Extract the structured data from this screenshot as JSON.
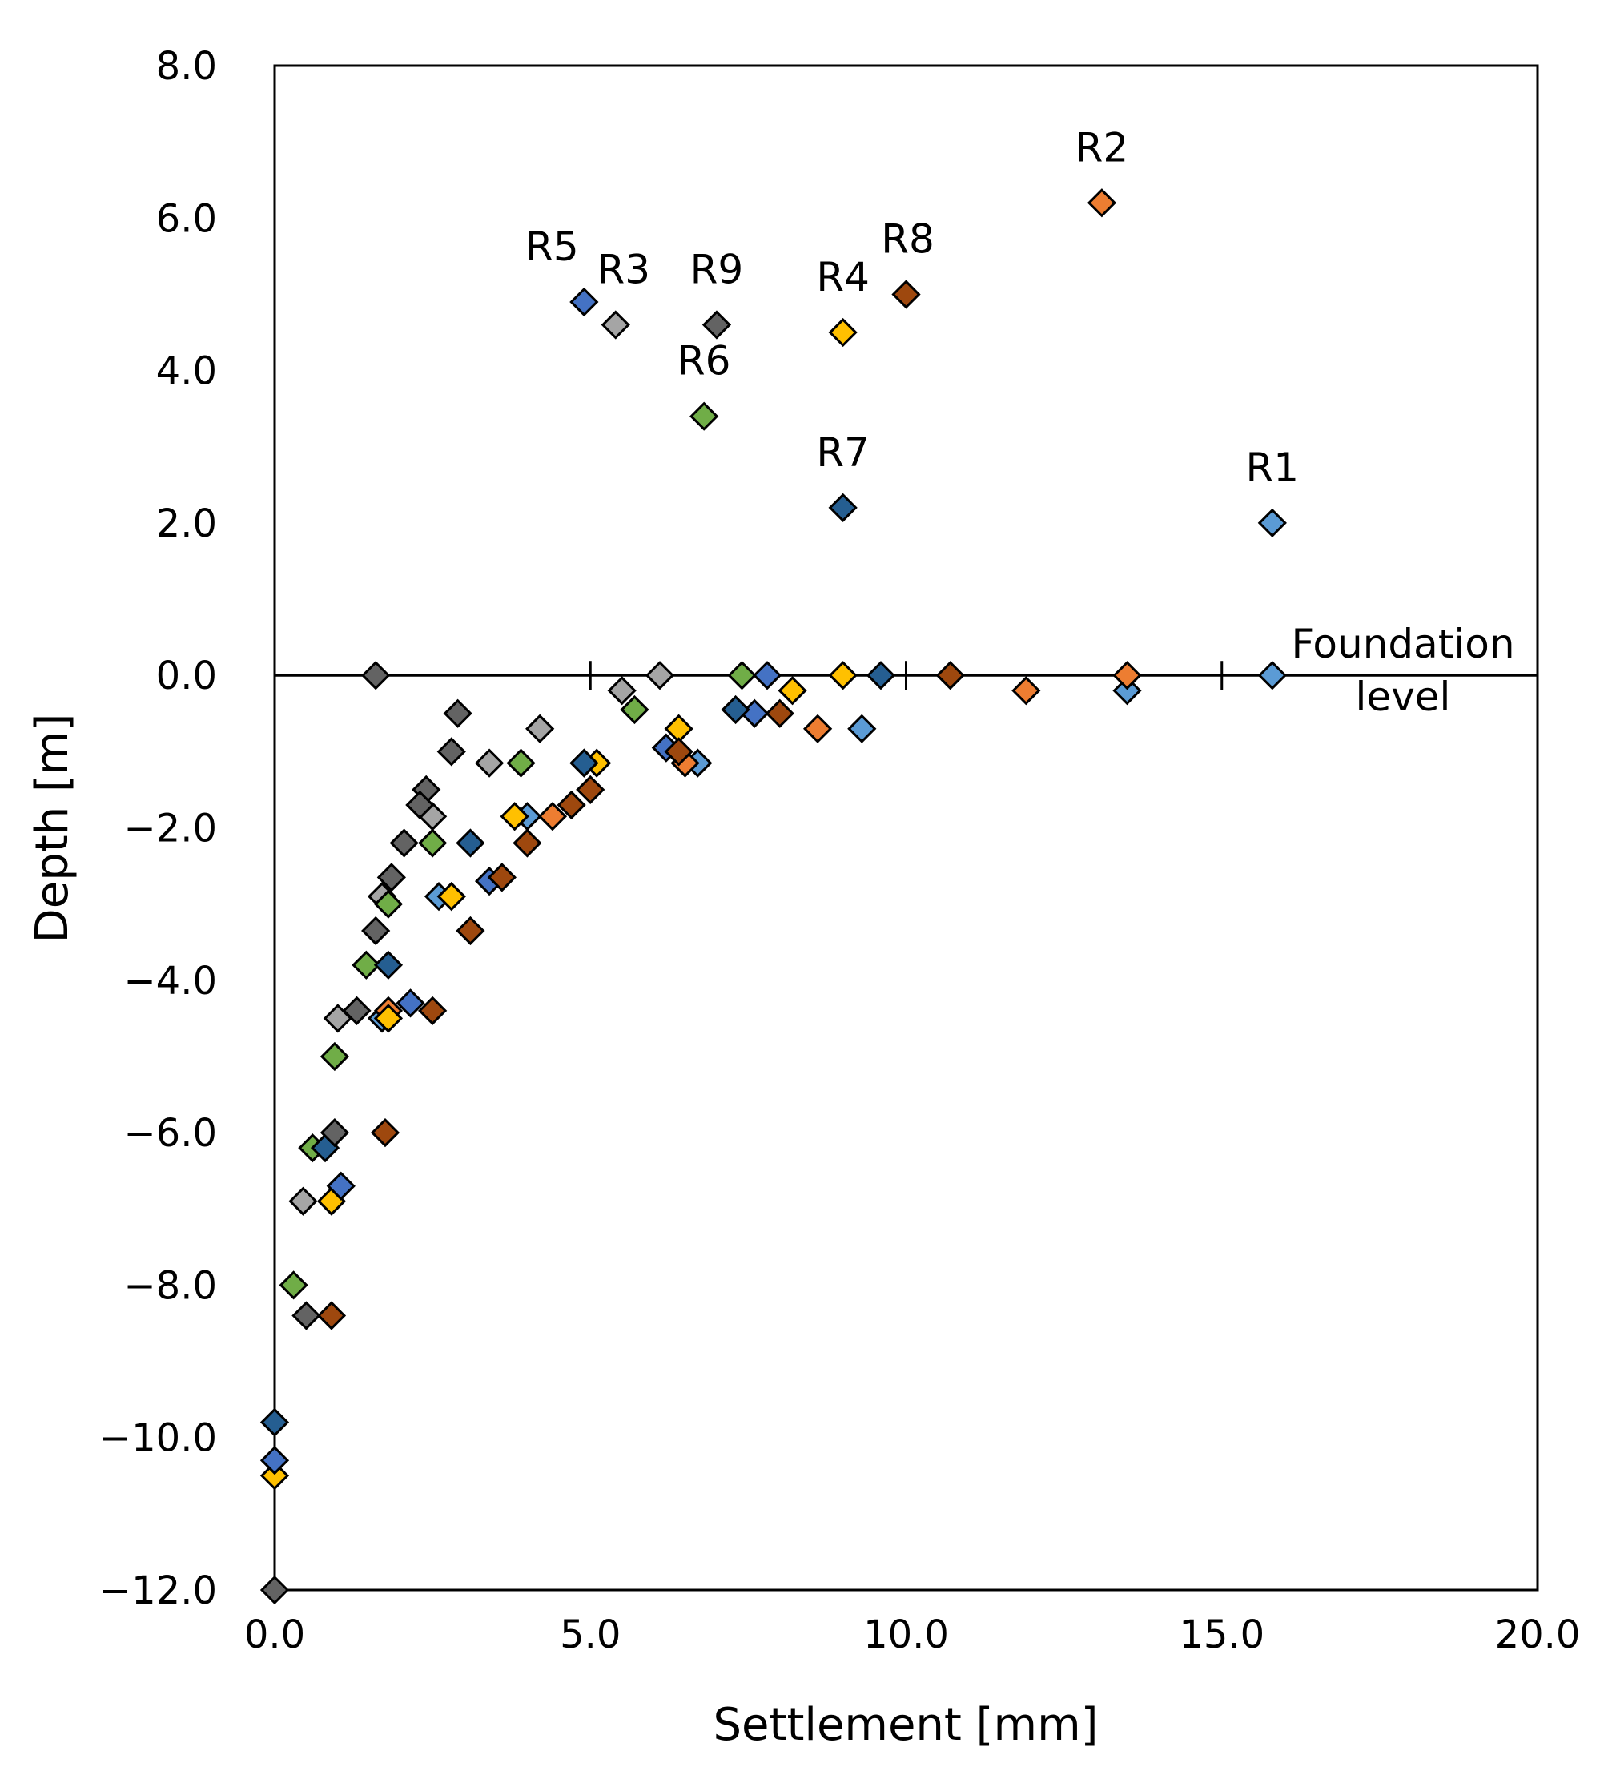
{
  "chart_data": {
    "type": "scatter",
    "xlabel": "Settlement [mm]",
    "ylabel": "Depth [m]",
    "xlim": [
      0.0,
      20.0
    ],
    "ylim": [
      -12.0,
      8.0
    ],
    "x_ticks": [
      0.0,
      5.0,
      10.0,
      15.0,
      20.0
    ],
    "y_ticks": [
      8.0,
      6.0,
      4.0,
      2.0,
      0.0,
      -2.0,
      -4.0,
      -6.0,
      -8.0,
      -10.0,
      -12.0
    ],
    "x_tick_labels": [
      "0.0",
      "5.0",
      "10.0",
      "15.0",
      "20.0"
    ],
    "y_tick_labels": [
      "8.0",
      "6.0",
      "4.0",
      "2.0",
      "0.0",
      "−2.0",
      "−4.0",
      "−6.0",
      "−8.0",
      "−10.0",
      "−12.0"
    ],
    "grid": false,
    "reference_line": {
      "y": 0.0,
      "label_line1": "Foundation",
      "label_line2": "level"
    },
    "series": [
      {
        "name": "R1",
        "color": "#5B9BD5",
        "points": [
          [
            15.8,
            2.0
          ],
          [
            15.8,
            0.0
          ],
          [
            13.5,
            -0.2
          ],
          [
            9.3,
            -0.7
          ],
          [
            6.7,
            -1.15
          ],
          [
            4.0,
            -1.85
          ],
          [
            2.6,
            -2.9
          ],
          [
            1.7,
            -4.5
          ]
        ]
      },
      {
        "name": "R2",
        "color": "#ED7D31",
        "points": [
          [
            13.1,
            6.2
          ],
          [
            13.5,
            0.0
          ],
          [
            11.9,
            -0.2
          ],
          [
            8.6,
            -0.7
          ],
          [
            6.5,
            -1.15
          ],
          [
            4.4,
            -1.85
          ],
          [
            2.8,
            -2.9
          ],
          [
            1.8,
            -4.4
          ]
        ]
      },
      {
        "name": "R3",
        "color": "#A5A5A5",
        "points": [
          [
            5.4,
            4.6
          ],
          [
            6.1,
            0.0
          ],
          [
            5.5,
            -0.2
          ],
          [
            4.2,
            -0.7
          ],
          [
            3.4,
            -1.15
          ],
          [
            2.5,
            -1.85
          ],
          [
            1.7,
            -2.9
          ],
          [
            1.0,
            -4.5
          ],
          [
            0.45,
            -6.9
          ]
        ]
      },
      {
        "name": "R4",
        "color": "#FFC000",
        "points": [
          [
            9.0,
            4.5
          ],
          [
            9.0,
            0.0
          ],
          [
            8.2,
            -0.2
          ],
          [
            6.4,
            -0.7
          ],
          [
            5.1,
            -1.15
          ],
          [
            3.8,
            -1.85
          ],
          [
            2.8,
            -2.9
          ],
          [
            1.8,
            -4.5
          ],
          [
            0.9,
            -6.9
          ],
          [
            0.0,
            -10.5
          ]
        ]
      },
      {
        "name": "R5",
        "color": "#4472C4",
        "points": [
          [
            4.9,
            4.9
          ],
          [
            7.8,
            0.0
          ],
          [
            7.6,
            -0.5
          ],
          [
            6.2,
            -0.95
          ],
          [
            4.9,
            -1.15
          ],
          [
            3.4,
            -2.7
          ],
          [
            2.15,
            -4.3
          ],
          [
            1.05,
            -6.7
          ],
          [
            0.0,
            -10.3
          ]
        ]
      },
      {
        "name": "R6",
        "color": "#70AD47",
        "points": [
          [
            6.8,
            3.4
          ],
          [
            7.4,
            0.0
          ],
          [
            5.7,
            -0.45
          ],
          [
            3.9,
            -1.15
          ],
          [
            2.5,
            -2.2
          ],
          [
            1.8,
            -3.0
          ],
          [
            1.45,
            -3.8
          ],
          [
            0.95,
            -5.0
          ],
          [
            0.6,
            -6.2
          ],
          [
            0.3,
            -8.0
          ]
        ]
      },
      {
        "name": "R7",
        "color": "#255E91",
        "points": [
          [
            9.0,
            2.2
          ],
          [
            9.6,
            0.0
          ],
          [
            7.3,
            -0.45
          ],
          [
            4.9,
            -1.15
          ],
          [
            3.1,
            -2.2
          ],
          [
            1.8,
            -3.8
          ],
          [
            0.8,
            -6.2
          ],
          [
            0.0,
            -9.8
          ]
        ]
      },
      {
        "name": "R8",
        "color": "#9E480E",
        "points": [
          [
            10.0,
            5.0
          ],
          [
            10.7,
            0.0
          ],
          [
            8.0,
            -0.5
          ],
          [
            6.4,
            -1.0
          ],
          [
            5.0,
            -1.5
          ],
          [
            4.7,
            -1.7
          ],
          [
            4.0,
            -2.2
          ],
          [
            3.6,
            -2.65
          ],
          [
            3.1,
            -3.35
          ],
          [
            2.5,
            -4.4
          ],
          [
            1.75,
            -6.0
          ],
          [
            0.9,
            -8.4
          ]
        ]
      },
      {
        "name": "R9",
        "color": "#636363",
        "points": [
          [
            7.0,
            4.6
          ],
          [
            1.6,
            0.0
          ],
          [
            2.9,
            -0.5
          ],
          [
            2.8,
            -1.0
          ],
          [
            2.4,
            -1.5
          ],
          [
            2.3,
            -1.7
          ],
          [
            2.05,
            -2.2
          ],
          [
            1.85,
            -2.65
          ],
          [
            1.6,
            -3.35
          ],
          [
            1.3,
            -4.4
          ],
          [
            0.95,
            -6.0
          ],
          [
            0.5,
            -8.4
          ],
          [
            0.0,
            -12.0
          ]
        ]
      }
    ]
  }
}
